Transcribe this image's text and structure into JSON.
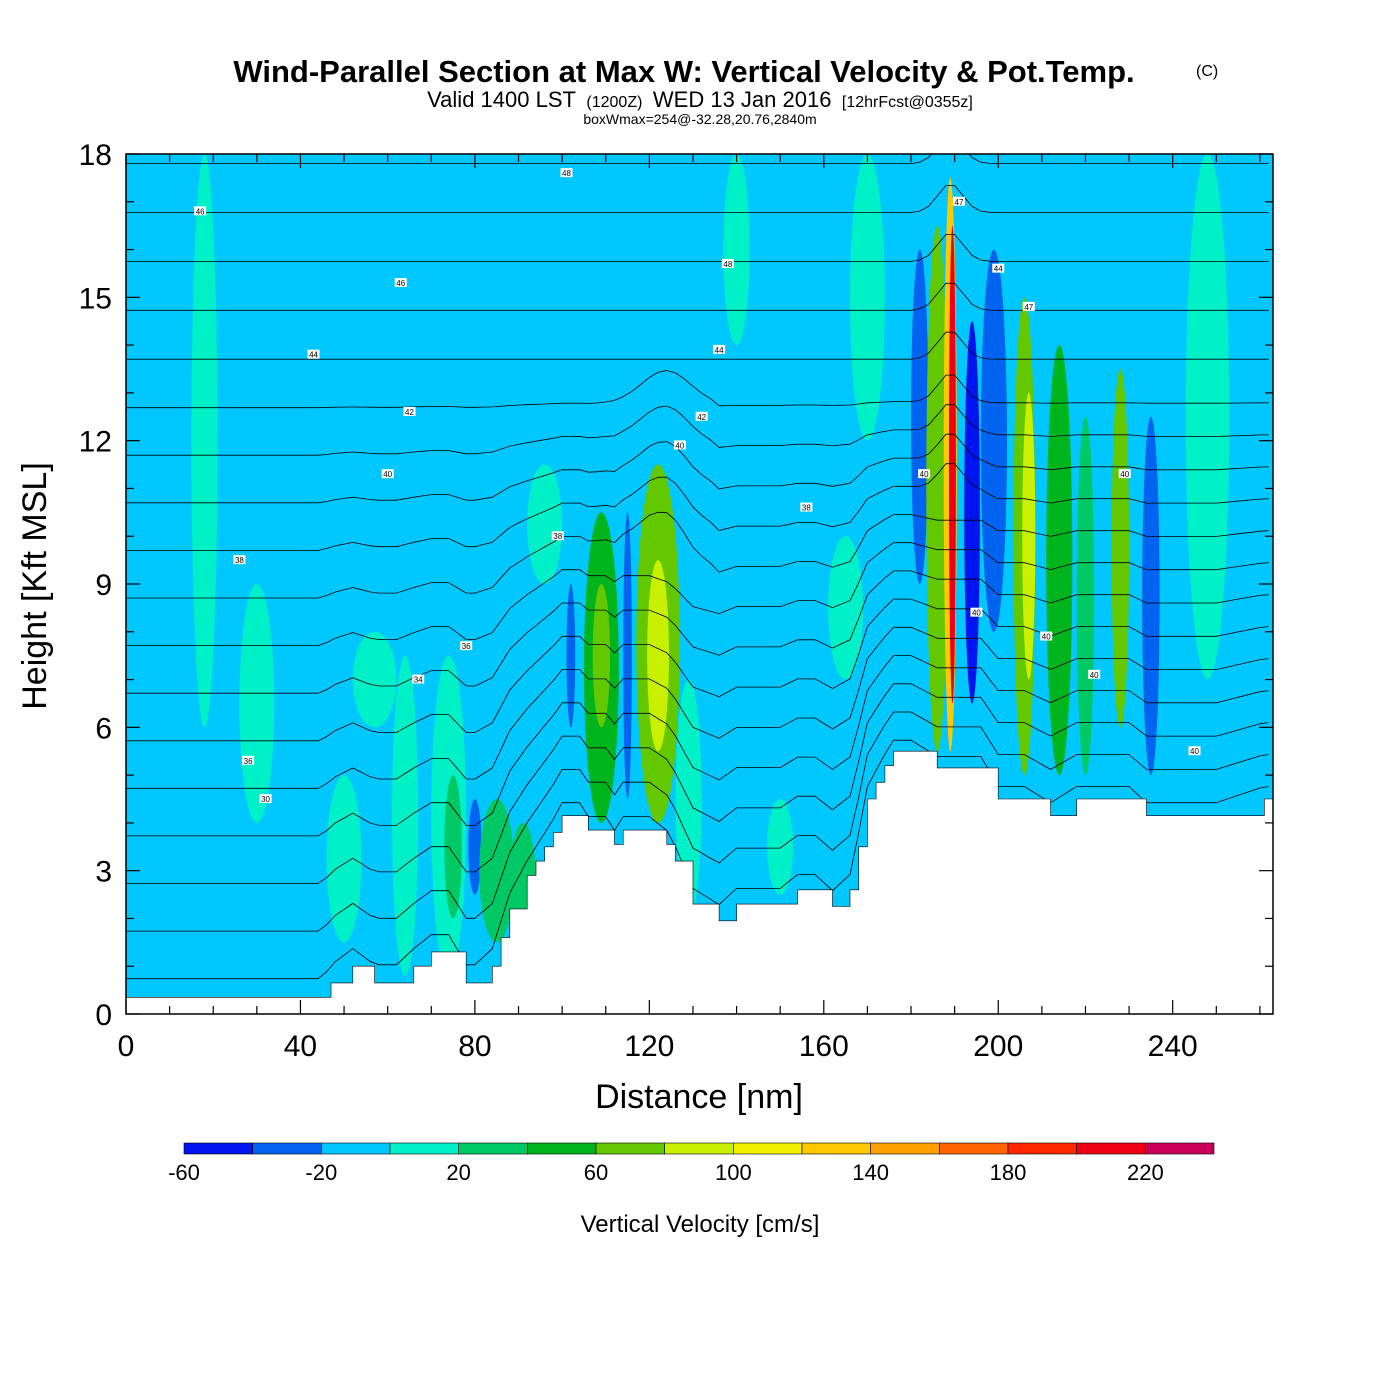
{
  "header": {
    "title": "Wind-Parallel Section at Max W: Vertical Velocity & Pot.Temp.",
    "copyright": "(C)",
    "valid_prefix": "Valid 1400 LST",
    "valid_utc": "(1200Z)",
    "valid_date": "WED 13 Jan 2016",
    "forecast": "[12hrFcst@0355z]",
    "box_wmax": "boxWmax=254@-32.28,20.76,2840m"
  },
  "chart_data": {
    "type": "heatmap",
    "title": "Wind-Parallel Section at Max W: Vertical Velocity & Pot.Temp.",
    "xlabel": "Distance [nm]",
    "ylabel": "Height [Kft MSL]",
    "xlim": [
      0,
      263
    ],
    "ylim": [
      0,
      18
    ],
    "x_ticks": [
      "0",
      "40",
      "80",
      "120",
      "160",
      "200",
      "240"
    ],
    "y_ticks": [
      "0",
      "3",
      "6",
      "9",
      "12",
      "15",
      "18"
    ],
    "background_w": -10,
    "w_features": [
      {
        "x": 18,
        "width": 3,
        "base": 6,
        "top": 18,
        "w": 5
      },
      {
        "x": 30,
        "width": 4,
        "base": 4,
        "top": 9,
        "w": 5
      },
      {
        "x": 50,
        "width": 4,
        "base": 1.5,
        "top": 5,
        "w": 10
      },
      {
        "x": 57,
        "width": 5,
        "base": 6,
        "top": 8,
        "w": 5
      },
      {
        "x": 64,
        "width": 3,
        "base": 0.8,
        "top": 7.5,
        "w": 10
      },
      {
        "x": 74,
        "width": 4,
        "base": 0.8,
        "top": 7.5,
        "w": 15
      },
      {
        "x": 75,
        "width": 2,
        "base": 2,
        "top": 5,
        "w": 35
      },
      {
        "x": 80,
        "width": 1.5,
        "base": 2.5,
        "top": 4.5,
        "w": -40
      },
      {
        "x": 85,
        "width": 4,
        "base": 1.5,
        "top": 4.5,
        "w": 30
      },
      {
        "x": 91,
        "width": 3,
        "base": 1.5,
        "top": 4,
        "w": 35
      },
      {
        "x": 96,
        "width": 4,
        "base": 9,
        "top": 11.5,
        "w": 10
      },
      {
        "x": 102,
        "width": 1,
        "base": 6,
        "top": 9,
        "w": -40
      },
      {
        "x": 109,
        "width": 4,
        "base": 4,
        "top": 10.5,
        "w": 55
      },
      {
        "x": 109,
        "width": 2,
        "base": 6,
        "top": 9,
        "w": 70
      },
      {
        "x": 115,
        "width": 1,
        "base": 4.5,
        "top": 10.5,
        "w": -40
      },
      {
        "x": 122,
        "width": 5,
        "base": 4,
        "top": 11.5,
        "w": 60
      },
      {
        "x": 122,
        "width": 2.5,
        "base": 5.5,
        "top": 9.5,
        "w": 80
      },
      {
        "x": 129,
        "width": 3,
        "base": 2,
        "top": 7,
        "w": 5
      },
      {
        "x": 140,
        "width": 3,
        "base": 14,
        "top": 18,
        "w": 5
      },
      {
        "x": 150,
        "width": 3,
        "base": 2.5,
        "top": 4.5,
        "w": 5
      },
      {
        "x": 165,
        "width": 4,
        "base": 7,
        "top": 10,
        "w": 5
      },
      {
        "x": 170,
        "width": 4,
        "base": 12,
        "top": 18,
        "w": 5
      },
      {
        "x": 182,
        "width": 2,
        "base": 9,
        "top": 16,
        "w": -40
      },
      {
        "x": 186,
        "width": 2.5,
        "base": 5.5,
        "top": 16.5,
        "w": 60
      },
      {
        "x": 189,
        "width": 1.5,
        "base": 5.5,
        "top": 17.5,
        "w": 120
      },
      {
        "x": 189.5,
        "width": 0.8,
        "base": 6.5,
        "top": 16.5,
        "w": 210
      },
      {
        "x": 194,
        "width": 1.8,
        "base": 6.5,
        "top": 14.5,
        "w": -50
      },
      {
        "x": 199,
        "width": 3,
        "base": 8,
        "top": 16,
        "w": -30
      },
      {
        "x": 206,
        "width": 2.5,
        "base": 5,
        "top": 15,
        "w": 65
      },
      {
        "x": 207,
        "width": 1.5,
        "base": 7,
        "top": 13,
        "w": 95
      },
      {
        "x": 214,
        "width": 3,
        "base": 5,
        "top": 14,
        "w": 45
      },
      {
        "x": 220,
        "width": 2,
        "base": 5,
        "top": 12.5,
        "w": 30
      },
      {
        "x": 228,
        "width": 2,
        "base": 6,
        "top": 13.5,
        "w": 60
      },
      {
        "x": 235,
        "width": 2,
        "base": 5,
        "top": 12.5,
        "w": -30
      },
      {
        "x": 248,
        "width": 5,
        "base": 7,
        "top": 18,
        "w": 5
      }
    ],
    "terrain": {
      "x": [
        0,
        45,
        47,
        52,
        57,
        62,
        66,
        70,
        74,
        78,
        80,
        84,
        86,
        88,
        92,
        94,
        96,
        98,
        100,
        104,
        106,
        110,
        112,
        114,
        116,
        120,
        124,
        126,
        130,
        136,
        140,
        144,
        150,
        154,
        158,
        162,
        166,
        168,
        170,
        172,
        174,
        176,
        180,
        186,
        190,
        196,
        200,
        206,
        212,
        218,
        222,
        230,
        234,
        240,
        250,
        261,
        263
      ],
      "h": [
        0.35,
        0.35,
        0.65,
        1.0,
        0.65,
        0.65,
        1.0,
        1.3,
        1.3,
        0.65,
        0.65,
        1.0,
        1.6,
        2.2,
        2.9,
        3.2,
        3.5,
        3.8,
        4.15,
        4.15,
        3.85,
        3.85,
        3.55,
        3.85,
        3.85,
        3.85,
        3.55,
        3.2,
        2.3,
        1.95,
        2.3,
        2.3,
        2.3,
        2.6,
        2.6,
        2.25,
        2.6,
        3.5,
        4.5,
        4.85,
        5.2,
        5.5,
        5.5,
        5.15,
        5.15,
        5.15,
        4.5,
        4.5,
        4.15,
        4.5,
        4.5,
        4.5,
        4.15,
        4.15,
        4.15,
        4.5,
        4.5
      ]
    },
    "isentropes_theta": [
      28,
      30,
      32,
      34,
      36,
      37,
      38,
      39,
      40,
      41,
      42,
      43,
      44,
      45,
      46,
      47,
      48,
      49
    ],
    "contour_labels": [
      {
        "x": 17,
        "y": 16.8,
        "text": "46"
      },
      {
        "x": 63,
        "y": 15.3,
        "text": "46"
      },
      {
        "x": 101,
        "y": 17.6,
        "text": "48"
      },
      {
        "x": 138,
        "y": 15.7,
        "text": "48"
      },
      {
        "x": 43,
        "y": 13.8,
        "text": "44"
      },
      {
        "x": 136,
        "y": 13.9,
        "text": "44"
      },
      {
        "x": 65,
        "y": 12.6,
        "text": "42"
      },
      {
        "x": 132,
        "y": 12.5,
        "text": "42"
      },
      {
        "x": 127,
        "y": 11.9,
        "text": "40"
      },
      {
        "x": 60,
        "y": 11.3,
        "text": "40"
      },
      {
        "x": 99,
        "y": 10.0,
        "text": "38"
      },
      {
        "x": 156,
        "y": 10.6,
        "text": "38"
      },
      {
        "x": 26,
        "y": 9.5,
        "text": "38"
      },
      {
        "x": 78,
        "y": 7.7,
        "text": "36"
      },
      {
        "x": 67,
        "y": 7.0,
        "text": "34"
      },
      {
        "x": 28,
        "y": 5.3,
        "text": "36"
      },
      {
        "x": 32,
        "y": 4.5,
        "text": "30"
      },
      {
        "x": 183,
        "y": 11.3,
        "text": "40"
      },
      {
        "x": 191,
        "y": 17.0,
        "text": "47"
      },
      {
        "x": 200,
        "y": 15.6,
        "text": "44"
      },
      {
        "x": 207,
        "y": 14.8,
        "text": "47"
      },
      {
        "x": 229,
        "y": 11.3,
        "text": "40"
      },
      {
        "x": 195,
        "y": 8.4,
        "text": "40"
      },
      {
        "x": 211,
        "y": 7.9,
        "text": "40"
      },
      {
        "x": 222,
        "y": 7.1,
        "text": "40"
      },
      {
        "x": 245,
        "y": 5.5,
        "text": "40"
      }
    ]
  },
  "colorbar": {
    "label": "Vertical Velocity [cm/s]",
    "bins": [
      -60,
      -40,
      -20,
      0,
      20,
      40,
      60,
      80,
      100,
      120,
      140,
      160,
      180,
      200,
      220,
      240
    ],
    "tick_labels": [
      "-60",
      "-20",
      "20",
      "60",
      "100",
      "140",
      "180",
      "220"
    ],
    "colors": [
      "#0014f0",
      "#0064f0",
      "#00c8ff",
      "#00f0c8",
      "#00c864",
      "#00b41e",
      "#64c800",
      "#c8f000",
      "#f0f000",
      "#ffc800",
      "#ffa000",
      "#ff6400",
      "#ff2800",
      "#f00014",
      "#c8005a"
    ]
  }
}
